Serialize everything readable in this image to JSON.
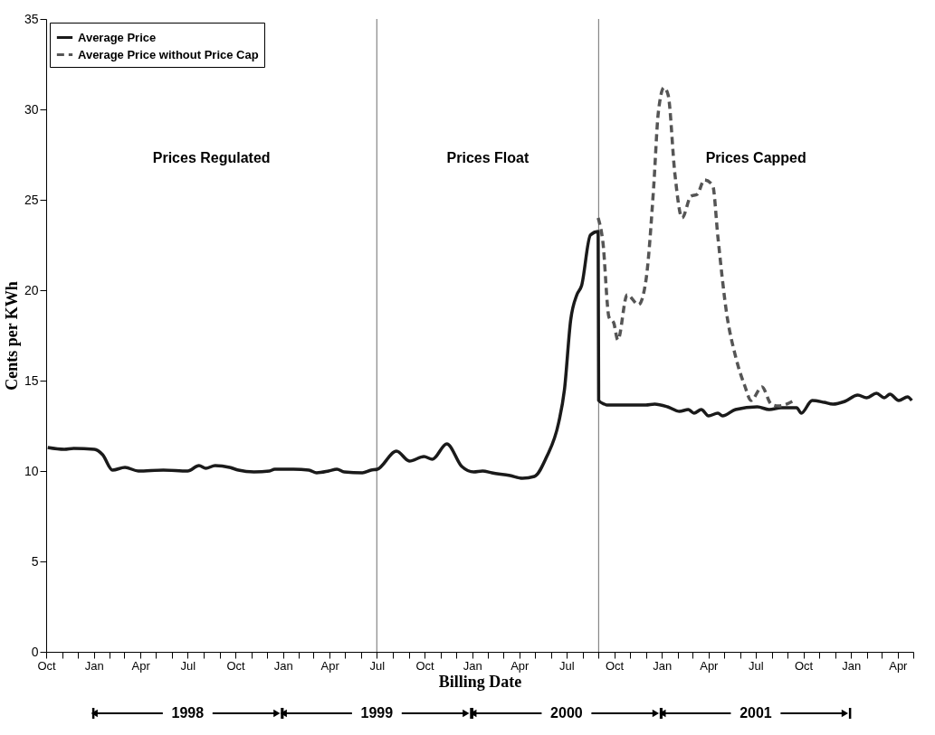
{
  "chart_data": {
    "type": "line",
    "xlabel": "Billing Date",
    "ylabel": "Cents per KWh",
    "xlim": [
      "1997-10-01",
      "2002-05-01"
    ],
    "ylim": [
      0,
      35
    ],
    "yticks": [
      0,
      5,
      10,
      15,
      20,
      25,
      30,
      35
    ],
    "xticks": [
      {
        "value": "1997-10-01",
        "label": "Oct"
      },
      {
        "value": "1997-11-01",
        "label": null
      },
      {
        "value": "1997-12-01",
        "label": null
      },
      {
        "value": "1998-01-01",
        "label": "Jan"
      },
      {
        "value": "1998-02-01",
        "label": null
      },
      {
        "value": "1998-03-01",
        "label": null
      },
      {
        "value": "1998-04-01",
        "label": "Apr"
      },
      {
        "value": "1998-05-01",
        "label": null
      },
      {
        "value": "1998-06-01",
        "label": null
      },
      {
        "value": "1998-07-01",
        "label": "Jul"
      },
      {
        "value": "1998-08-01",
        "label": null
      },
      {
        "value": "1998-09-01",
        "label": null
      },
      {
        "value": "1998-10-01",
        "label": "Oct"
      },
      {
        "value": "1998-11-01",
        "label": null
      },
      {
        "value": "1998-12-01",
        "label": null
      },
      {
        "value": "1999-01-01",
        "label": "Jan"
      },
      {
        "value": "1999-02-01",
        "label": null
      },
      {
        "value": "1999-03-01",
        "label": null
      },
      {
        "value": "1999-04-01",
        "label": "Apr"
      },
      {
        "value": "1999-05-01",
        "label": null
      },
      {
        "value": "1999-06-01",
        "label": null
      },
      {
        "value": "1999-07-01",
        "label": "Jul"
      },
      {
        "value": "1999-08-01",
        "label": null
      },
      {
        "value": "1999-09-01",
        "label": null
      },
      {
        "value": "1999-10-01",
        "label": "Oct"
      },
      {
        "value": "1999-11-01",
        "label": null
      },
      {
        "value": "1999-12-01",
        "label": null
      },
      {
        "value": "2000-01-01",
        "label": "Jan"
      },
      {
        "value": "2000-02-01",
        "label": null
      },
      {
        "value": "2000-03-01",
        "label": null
      },
      {
        "value": "2000-04-01",
        "label": "Apr"
      },
      {
        "value": "2000-05-01",
        "label": null
      },
      {
        "value": "2000-06-01",
        "label": null
      },
      {
        "value": "2000-07-01",
        "label": "Jul"
      },
      {
        "value": "2000-08-01",
        "label": null
      },
      {
        "value": "2000-09-01",
        "label": null
      },
      {
        "value": "2000-10-01",
        "label": "Oct"
      },
      {
        "value": "2000-11-01",
        "label": null
      },
      {
        "value": "2000-12-01",
        "label": null
      },
      {
        "value": "2001-01-01",
        "label": "Jan"
      },
      {
        "value": "2001-02-01",
        "label": null
      },
      {
        "value": "2001-03-01",
        "label": null
      },
      {
        "value": "2001-04-01",
        "label": "Apr"
      },
      {
        "value": "2001-05-01",
        "label": null
      },
      {
        "value": "2001-06-01",
        "label": null
      },
      {
        "value": "2001-07-01",
        "label": "Jul"
      },
      {
        "value": "2001-08-01",
        "label": null
      },
      {
        "value": "2001-09-01",
        "label": null
      },
      {
        "value": "2001-10-01",
        "label": "Oct"
      },
      {
        "value": "2001-11-01",
        "label": null
      },
      {
        "value": "2001-12-01",
        "label": null
      },
      {
        "value": "2002-01-01",
        "label": "Jan"
      },
      {
        "value": "2002-02-01",
        "label": null
      },
      {
        "value": "2002-03-01",
        "label": null
      },
      {
        "value": "2002-04-01",
        "label": "Apr"
      },
      {
        "value": "2002-05-01",
        "label": null
      }
    ],
    "grid": false,
    "legend": "top left",
    "series": [
      {
        "name": "Average Price",
        "color": "#1a1a1a",
        "line_style": "solid",
        "x": [
          "1997-10-04",
          "1997-11-05",
          "1997-11-23",
          "1998-01-02",
          "1998-01-18",
          "1998-02-06",
          "1998-03-02",
          "1998-03-28",
          "1998-05-15",
          "1998-07-01",
          "1998-07-23",
          "1998-08-05",
          "1998-08-23",
          "1998-09-20",
          "1998-10-07",
          "1998-11-06",
          "1998-12-06",
          "1998-12-16",
          "1999-01-21",
          "1999-02-20",
          "1999-03-07",
          "1999-03-30",
          "1999-04-15",
          "1999-04-29",
          "1999-06-03",
          "1999-06-20",
          "1999-07-02",
          "1999-08-08",
          "1999-09-02",
          "1999-09-30",
          "1999-10-16",
          "1999-11-13",
          "1999-12-12",
          "2000-01-04",
          "2000-01-21",
          "2000-02-08",
          "2000-03-14",
          "2000-04-07",
          "2000-04-30",
          "2000-05-23",
          "2000-06-16",
          "2000-06-27",
          "2000-07-09",
          "2000-07-21",
          "2000-07-30",
          "2000-08-16",
          "2000-08-31",
          "2000-09-01",
          "2000-09-12",
          "2000-09-17",
          "2000-12-01",
          "2000-12-18",
          "2001-01-12",
          "2001-02-04",
          "2001-02-21",
          "2001-03-04",
          "2001-03-18",
          "2001-04-01",
          "2001-04-19",
          "2001-04-28",
          "2001-05-23",
          "2001-07-04",
          "2001-07-27",
          "2001-08-19",
          "2001-09-18",
          "2001-09-27",
          "2001-10-18",
          "2001-11-10",
          "2001-11-27",
          "2001-12-20",
          "2002-01-14",
          "2002-01-31",
          "2002-02-19",
          "2002-03-06",
          "2002-03-17",
          "2002-04-03",
          "2002-04-20",
          "2002-04-28"
        ],
        "values": [
          11.3,
          11.2,
          11.25,
          11.2,
          10.9,
          10.05,
          10.2,
          10.0,
          10.05,
          10.0,
          10.3,
          10.15,
          10.3,
          10.2,
          10.05,
          9.95,
          10.0,
          10.1,
          10.1,
          10.05,
          9.9,
          10.0,
          10.1,
          9.95,
          9.9,
          10.05,
          10.1,
          11.1,
          10.55,
          10.8,
          10.65,
          11.5,
          10.25,
          9.95,
          10.0,
          9.9,
          9.75,
          9.6,
          9.7,
          10.75,
          12.7,
          14.5,
          18.35,
          19.75,
          20.25,
          23.05,
          23.25,
          13.9,
          13.7,
          13.65,
          13.65,
          13.7,
          13.55,
          13.3,
          13.4,
          13.2,
          13.4,
          13.05,
          13.2,
          13.05,
          13.4,
          13.55,
          13.4,
          13.5,
          13.5,
          13.2,
          13.9,
          13.8,
          13.7,
          13.85,
          14.2,
          14.05,
          14.3,
          14.05,
          14.25,
          13.9,
          14.1,
          13.9
        ]
      },
      {
        "name": "Average Price without Price Cap",
        "color": "#555555",
        "line_style": "dashed",
        "x": [
          "2000-08-31",
          "2000-09-09",
          "2000-09-21",
          "2000-09-30",
          "2000-10-08",
          "2000-10-26",
          "2000-11-17",
          "2000-12-01",
          "2000-12-16",
          "2000-12-25",
          "2001-01-05",
          "2001-01-13",
          "2001-01-26",
          "2001-02-09",
          "2001-02-26",
          "2001-03-10",
          "2001-03-24",
          "2001-04-09",
          "2001-04-19",
          "2001-05-06",
          "2001-05-23",
          "2001-06-10",
          "2001-06-22",
          "2001-07-13",
          "2001-07-31",
          "2001-08-14",
          "2001-09-13"
        ],
        "values": [
          24.0,
          22.7,
          18.5,
          18.2,
          17.25,
          19.75,
          19.2,
          20.5,
          25.65,
          29.8,
          31.2,
          30.8,
          26.45,
          24.0,
          25.2,
          25.3,
          26.1,
          25.8,
          22.95,
          18.7,
          16.35,
          14.7,
          13.9,
          14.65,
          13.7,
          13.6,
          13.9
        ]
      }
    ],
    "ref_lines": [
      {
        "axis": "x",
        "value": "1999-07-01",
        "color": "#888888"
      },
      {
        "axis": "x",
        "value": "2000-09-01",
        "color": "#888888"
      }
    ],
    "annotations": [
      "Prices Regulated",
      "Prices Float",
      "Prices Capped",
      "1998",
      "1999",
      "2000",
      "2001"
    ]
  }
}
